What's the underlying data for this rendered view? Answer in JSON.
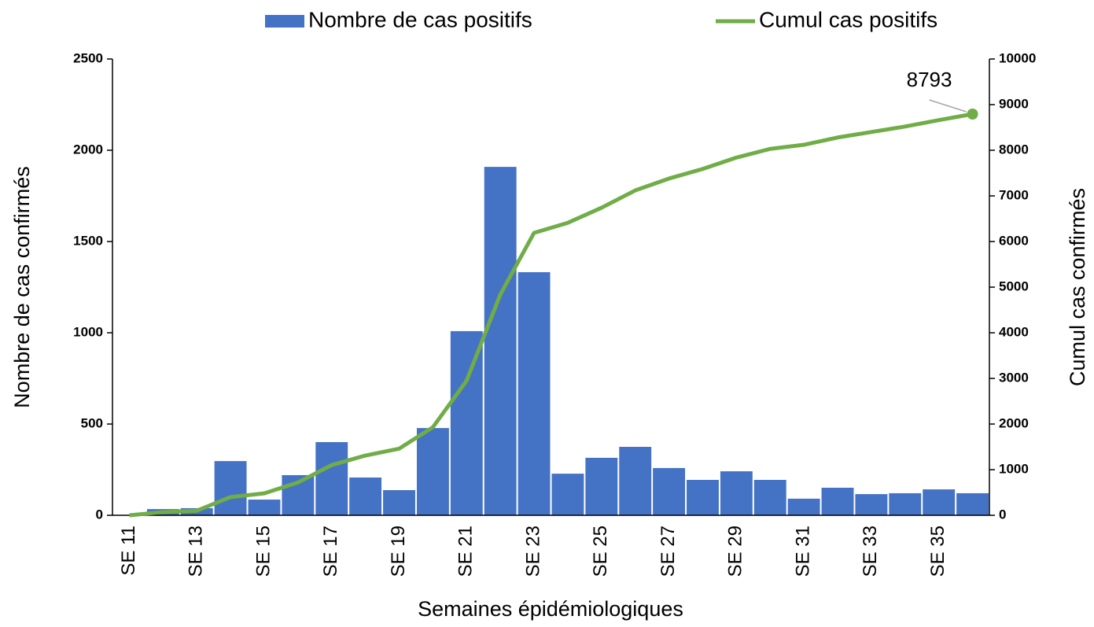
{
  "chart_data": {
    "type": "bar_line",
    "legend": "top",
    "x_label": "Semaines épidémiologiques",
    "y_label": "Nombre de cas confirmés",
    "y2_label": "Cumul cas confirmés",
    "categories": [
      "SE 11",
      null,
      "SE 13",
      null,
      "SE 15",
      null,
      "SE 17",
      null,
      "SE 19",
      null,
      "SE 21",
      null,
      "SE 23",
      null,
      "SE 25",
      null,
      "SE 27",
      null,
      "SE 29",
      null,
      "SE 31",
      null,
      "SE 33",
      null,
      "SE 35",
      null
    ],
    "series": [
      {
        "name": "Nombre de cas positifs",
        "type": "bar",
        "color": "#4472c4",
        "axis": "y",
        "values": [
          2,
          34,
          39,
          297,
          86,
          220,
          401,
          207,
          138,
          478,
          1009,
          1909,
          1332,
          228,
          315,
          375,
          259,
          194,
          241,
          194,
          91,
          151,
          116,
          121,
          142,
          121
        ]
      },
      {
        "name": "Cumul cas positifs",
        "type": "line",
        "color": "#70ad47",
        "axis": "y2",
        "values": [
          0,
          70,
          100,
          400,
          480,
          720,
          1100,
          1310,
          1460,
          1930,
          2950,
          4840,
          6190,
          6410,
          6740,
          7120,
          7380,
          7590,
          7840,
          8030,
          8120,
          8280,
          8400,
          8520,
          8660,
          8793
        ]
      }
    ],
    "ylim": [
      0,
      2500
    ],
    "yticks": [
      0,
      500,
      1000,
      1500,
      2000,
      2500
    ],
    "y2lim": [
      0,
      10000
    ],
    "y2ticks": [
      0,
      1000,
      2000,
      3000,
      4000,
      5000,
      6000,
      7000,
      8000,
      9000,
      10000
    ],
    "annotated_point": 25
  }
}
